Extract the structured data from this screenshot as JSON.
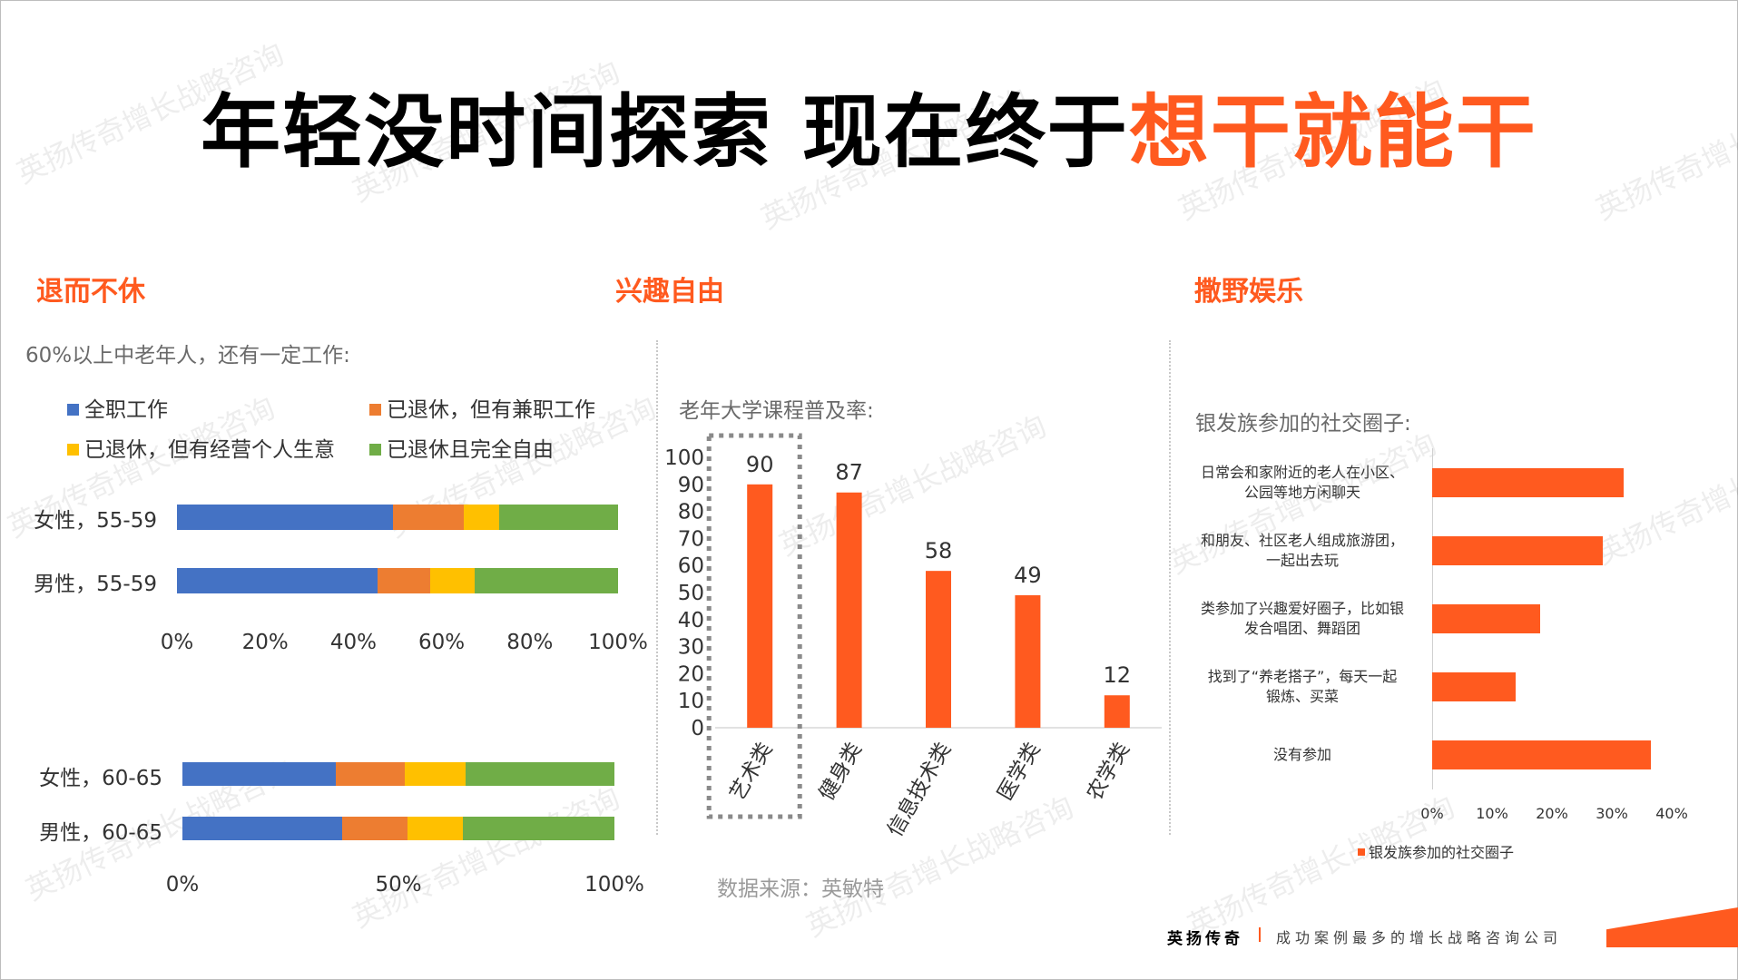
{
  "title": {
    "main": "年轻没时间探索 现在终于",
    "highlight": "想干就能干"
  },
  "sections": [
    {
      "title": "退而不休",
      "caption": "60%以上中老年人，还有一定工作:"
    },
    {
      "title": "兴趣自由",
      "caption": "老年大学课程普及率:"
    },
    {
      "title": "撒野娱乐",
      "caption": "银发族参加的社交圈子:"
    }
  ],
  "watermark_text": "英扬传奇增长战略咨询",
  "source": "数据来源：英敏特",
  "footer": {
    "brand": "英扬传奇",
    "slogan": "成功案例最多的增长战略咨询公司"
  },
  "colors": {
    "accent": "#ff5a1f",
    "blue": "#4472c4",
    "orange": "#ed7d31",
    "yellow": "#ffc000",
    "green": "#70ad47"
  },
  "chart_data": [
    {
      "type": "bar",
      "orientation": "horizontal",
      "stacked": true,
      "percent": true,
      "categories": [
        "女性，55-59",
        "男性，55-59"
      ],
      "series": [
        {
          "name": "全职工作",
          "values": [
            49,
            45.5
          ]
        },
        {
          "name": "已退休，但有兼职工作",
          "values": [
            16,
            12
          ]
        },
        {
          "name": "已退休，但有经营个人生意",
          "values": [
            8,
            10
          ]
        },
        {
          "name": "已退休且完全自由",
          "values": [
            27,
            32.5
          ]
        }
      ],
      "xticks": [
        "0%",
        "20%",
        "40%",
        "60%",
        "80%",
        "100%"
      ],
      "xlim": [
        0,
        100
      ],
      "legend": "top"
    },
    {
      "type": "bar",
      "orientation": "horizontal",
      "stacked": true,
      "percent": true,
      "categories": [
        "女性，60-65",
        "男性，60-65"
      ],
      "series": [
        {
          "name": "全职工作",
          "values": [
            35.5,
            37
          ]
        },
        {
          "name": "已退休，但有兼职工作",
          "values": [
            16,
            15
          ]
        },
        {
          "name": "已退休，但有经营个人生意",
          "values": [
            14,
            13
          ]
        },
        {
          "name": "已退休且完全自由",
          "values": [
            34.5,
            35
          ]
        }
      ],
      "xticks": [
        "0%",
        "50%",
        "100%"
      ],
      "xlim": [
        0,
        100
      ]
    },
    {
      "type": "bar",
      "categories": [
        "艺术类",
        "健身类",
        "信息技术类",
        "医学类",
        "农学类"
      ],
      "values": [
        90,
        87,
        58,
        49,
        12
      ],
      "data_labels": [
        "90",
        "87",
        "58",
        "49",
        "12"
      ],
      "yticks": [
        "0",
        "10",
        "20",
        "30",
        "40",
        "50",
        "60",
        "70",
        "80",
        "90",
        "100"
      ],
      "ylim": [
        0,
        100
      ],
      "highlight_index": 0
    },
    {
      "type": "bar",
      "orientation": "horizontal",
      "categories": [
        "日常会和家附近的老人在小区、公园等地方闲聊天",
        "和朋友、社区老人组成旅游团，一起出去玩",
        "类参加了兴趣爱好圈子，比如银发合唱团、舞蹈团",
        "找到了“养老搭子”，每天一起锻炼、买菜",
        "没有参加"
      ],
      "labels_lines": [
        [
          "日常会和家附近的老人在小区、",
          "公园等地方闲聊天"
        ],
        [
          "和朋友、社区老人组成旅游团，",
          "一起出去玩"
        ],
        [
          "类参加了兴趣爱好圈子，比如银",
          "发合唱团、舞蹈团"
        ],
        [
          "找到了“养老搭子”，每天一起",
          "锻炼、买菜"
        ],
        [
          "没有参加"
        ]
      ],
      "series": [
        {
          "name": "银发族参加的社交圈子",
          "values": [
            32,
            28.5,
            18,
            14,
            36.5
          ]
        }
      ],
      "xticks": [
        "0%",
        "10%",
        "20%",
        "30%",
        "40%"
      ],
      "xlim": [
        0,
        40
      ],
      "legend": "bottom"
    }
  ]
}
